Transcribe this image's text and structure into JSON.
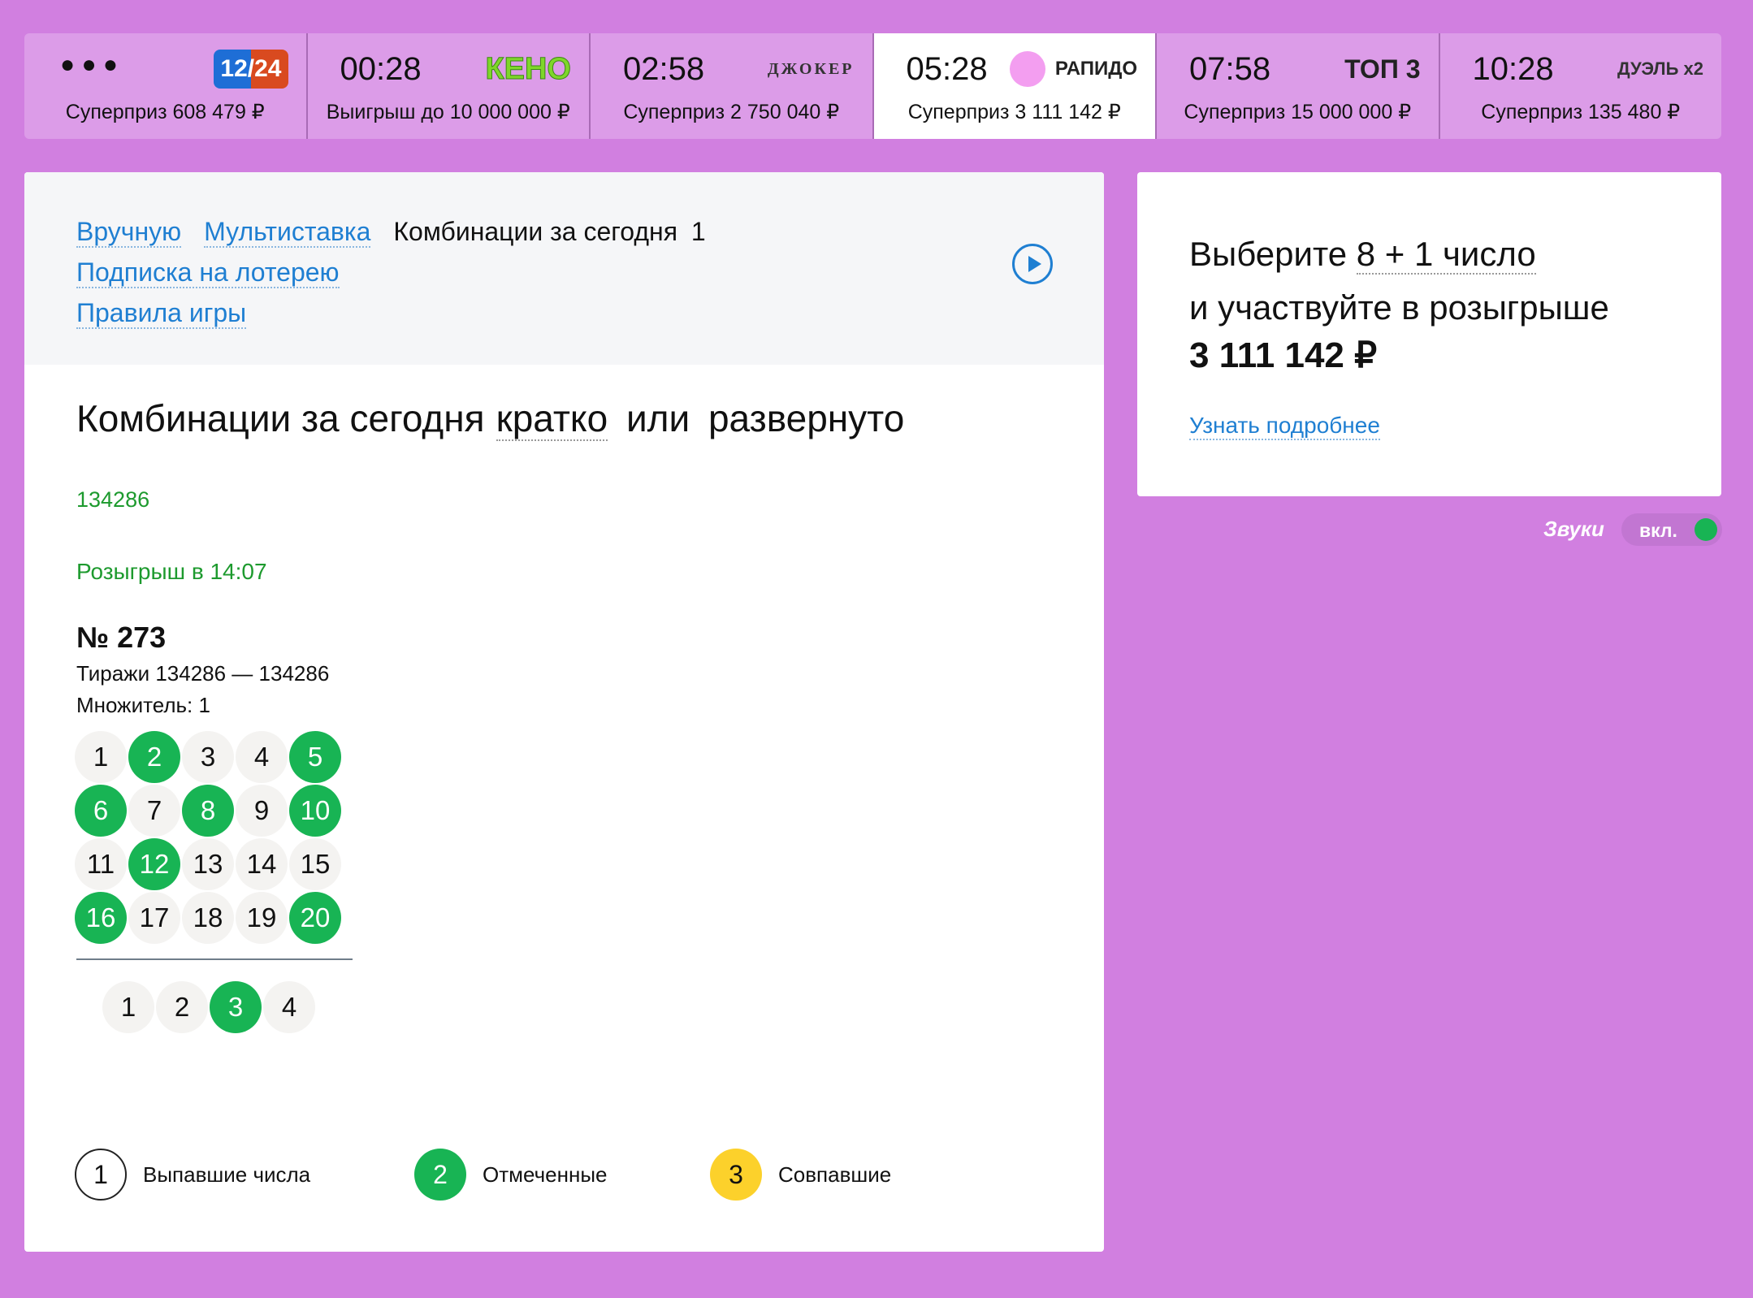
{
  "colors": {
    "background": "#d17fe0",
    "accent_green": "#18b454",
    "link_blue": "#1f7fd2",
    "match_yellow": "#fcd12b"
  },
  "lotteries": [
    {
      "id": "12-24",
      "time": "",
      "logo_text": "12/24",
      "prize": "Суперприз 608 479 ₽",
      "active": false
    },
    {
      "id": "keno",
      "time": "00:28",
      "logo_text": "КЕНО",
      "prize": "Выигрыш до 10 000 000 ₽",
      "active": false
    },
    {
      "id": "joker",
      "time": "02:58",
      "logo_text": "ДЖОКЕР",
      "prize": "Суперприз 2 750 040 ₽",
      "active": false
    },
    {
      "id": "rapido",
      "time": "05:28",
      "logo_text": "РАПИДО",
      "prize": "Суперприз 3 111 142 ₽",
      "active": true
    },
    {
      "id": "top3",
      "time": "07:58",
      "logo_text": "ТОП 3",
      "prize": "Суперприз 15 000 000 ₽",
      "active": false
    },
    {
      "id": "duel",
      "time": "10:28",
      "logo_text": "ДУЭЛЬ x2",
      "prize": "Суперприз 135 480 ₽",
      "active": false
    }
  ],
  "tabs": {
    "manual": "Вручную",
    "multi": "Мультиставка",
    "combos": "Комбинации за сегодня",
    "combos_count": "1",
    "subscription": "Подписка на лотерею",
    "rules": "Правила игры"
  },
  "main": {
    "title": "Комбинации за сегодня",
    "brief": "кратко",
    "or": "или",
    "expanded": "развернуто",
    "draw_number": "134286",
    "draw_time": "Розыгрыш в 14:07",
    "ticket": "№ 273",
    "draws": "Тиражи 134286 — 134286",
    "multiplier": "Множитель: 1",
    "grid": [
      1,
      2,
      3,
      4,
      5,
      6,
      7,
      8,
      9,
      10,
      11,
      12,
      13,
      14,
      15,
      16,
      17,
      18,
      19,
      20
    ],
    "selected": [
      2,
      5,
      6,
      8,
      10,
      12,
      16,
      20
    ],
    "bonus": [
      1,
      2,
      3,
      4
    ],
    "bonus_selected": [
      3
    ]
  },
  "legend": [
    {
      "num": "1",
      "label": "Выпавшие числа"
    },
    {
      "num": "2",
      "label": "Отмеченные"
    },
    {
      "num": "3",
      "label": "Совпавшие"
    }
  ],
  "side": {
    "line1": "Выберите",
    "highlight": "8 + 1 число",
    "line2": "и участвуйте в розыгрыше",
    "amount": "3 111 142 ₽",
    "more": "Узнать подробнее"
  },
  "sound": {
    "label": "Звуки",
    "state": "вкл.",
    "on": true
  }
}
